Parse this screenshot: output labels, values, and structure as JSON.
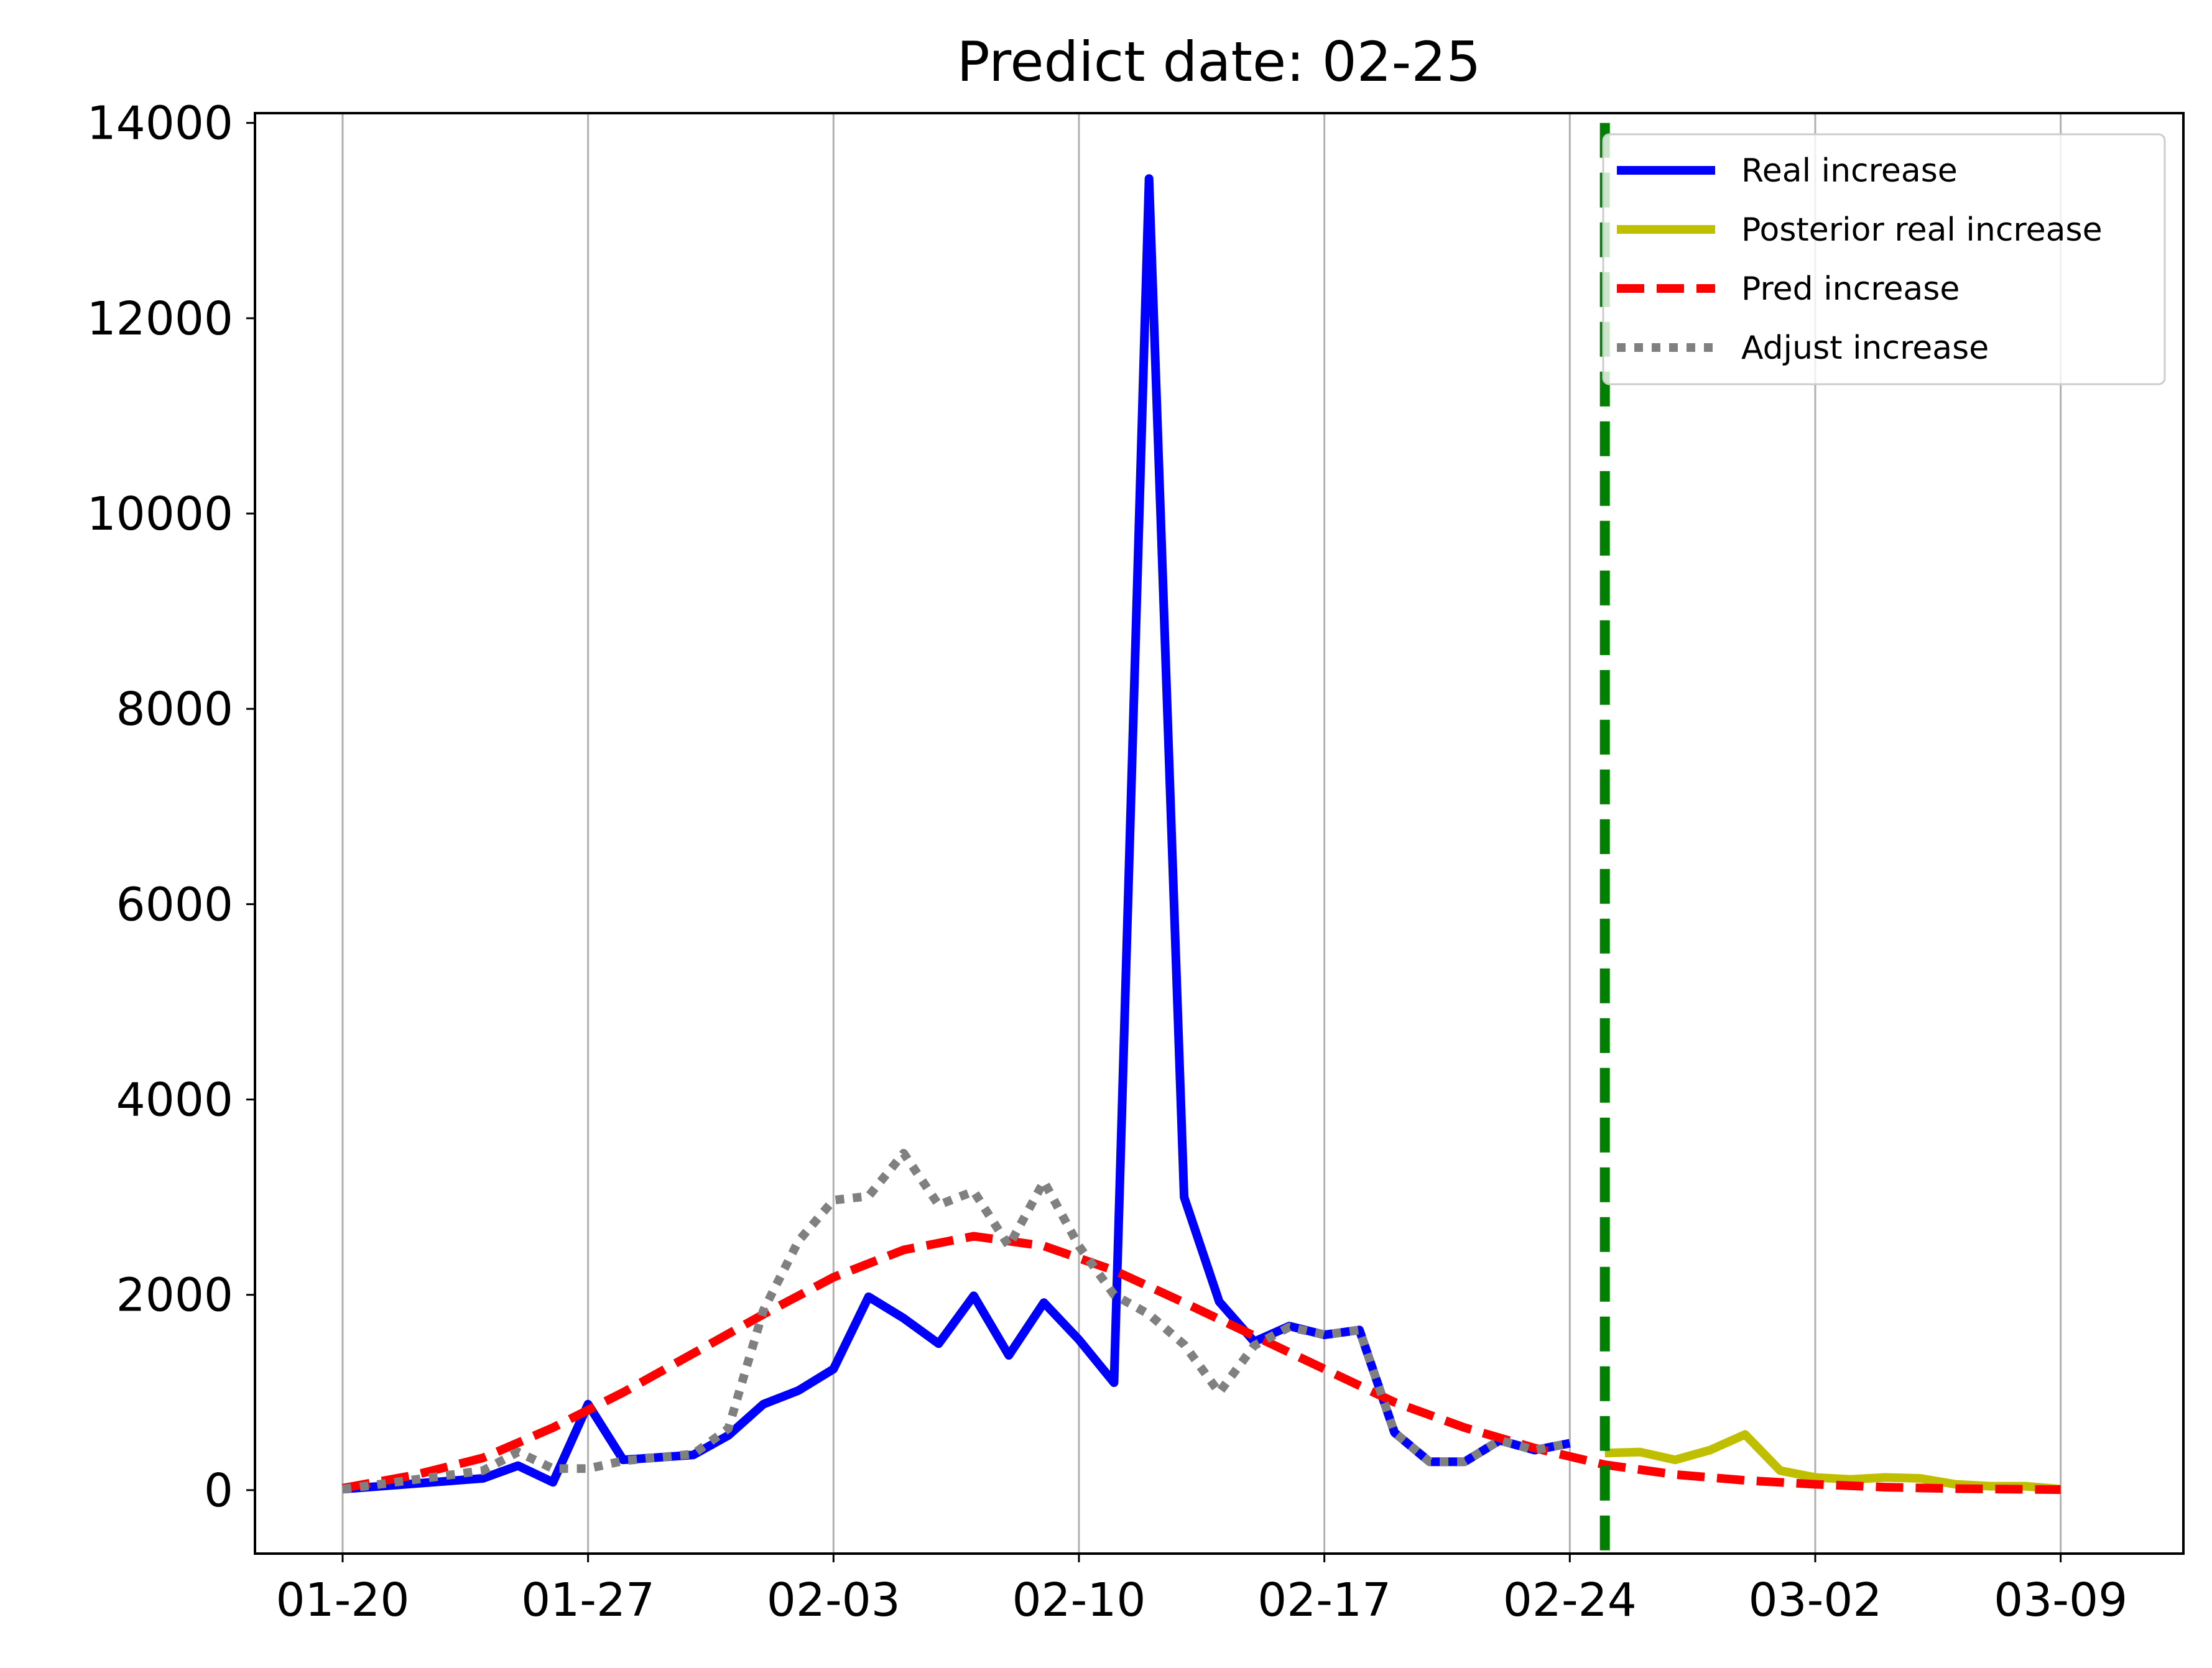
{
  "chart_data": {
    "type": "line",
    "title": "Predict date: 02-25",
    "xlabel": "",
    "ylabel": "",
    "x_ticks": [
      "01-20",
      "01-27",
      "02-03",
      "02-10",
      "02-17",
      "02-24",
      "03-02",
      "03-09"
    ],
    "y_ticks": [
      "0",
      "2000",
      "4000",
      "6000",
      "8000",
      "10000",
      "12000",
      "14000"
    ],
    "ylim": [
      -650,
      14100
    ],
    "xlim_days": [
      -2.5,
      52.5
    ],
    "x_start_date": "01-20",
    "grid": "vertical",
    "legend_position": "top-right",
    "predict_date": "02-25",
    "series": [
      {
        "name": "Real increase",
        "color": "#0000ff",
        "style": "solid",
        "points": [
          [
            0,
            10
          ],
          [
            4,
            120
          ],
          [
            5,
            250
          ],
          [
            6,
            80
          ],
          [
            7,
            880
          ],
          [
            8,
            310
          ],
          [
            10,
            360
          ],
          [
            11,
            560
          ],
          [
            12,
            880
          ],
          [
            13,
            1020
          ],
          [
            14,
            1240
          ],
          [
            15,
            1980
          ],
          [
            16,
            1760
          ],
          [
            17,
            1500
          ],
          [
            18,
            1990
          ],
          [
            19,
            1380
          ],
          [
            20,
            1920
          ],
          [
            21,
            1540
          ],
          [
            22,
            1100
          ],
          [
            23,
            13430
          ],
          [
            24,
            3000
          ],
          [
            25,
            1930
          ],
          [
            26,
            1520
          ],
          [
            27,
            1680
          ],
          [
            28,
            1590
          ],
          [
            29,
            1640
          ],
          [
            30,
            590
          ],
          [
            31,
            290
          ],
          [
            32,
            290
          ],
          [
            33,
            510
          ],
          [
            34,
            410
          ],
          [
            35,
            480
          ]
        ]
      },
      {
        "name": "Posterior real increase",
        "color": "#bfbf00",
        "style": "solid",
        "points": [
          [
            36,
            380
          ],
          [
            37,
            390
          ],
          [
            38,
            310
          ],
          [
            39,
            410
          ],
          [
            40,
            570
          ],
          [
            41,
            200
          ],
          [
            42,
            130
          ],
          [
            43,
            110
          ],
          [
            44,
            130
          ],
          [
            45,
            120
          ],
          [
            46,
            60
          ],
          [
            47,
            40
          ],
          [
            48,
            40
          ],
          [
            49,
            10
          ]
        ]
      },
      {
        "name": "Pred increase",
        "color": "#ff0000",
        "style": "dashed",
        "points": [
          [
            0,
            20
          ],
          [
            2,
            150
          ],
          [
            4,
            330
          ],
          [
            6,
            640
          ],
          [
            8,
            1000
          ],
          [
            10,
            1400
          ],
          [
            12,
            1800
          ],
          [
            14,
            2180
          ],
          [
            16,
            2460
          ],
          [
            18,
            2600
          ],
          [
            20,
            2500
          ],
          [
            22,
            2250
          ],
          [
            24,
            1920
          ],
          [
            26,
            1580
          ],
          [
            28,
            1240
          ],
          [
            30,
            900
          ],
          [
            32,
            640
          ],
          [
            34,
            430
          ],
          [
            36,
            260
          ],
          [
            38,
            160
          ],
          [
            40,
            100
          ],
          [
            42,
            60
          ],
          [
            44,
            30
          ],
          [
            46,
            15
          ],
          [
            48,
            8
          ],
          [
            49,
            5
          ]
        ]
      },
      {
        "name": "Adjust increase",
        "color": "#808080",
        "style": "dotted",
        "points": [
          [
            0,
            10
          ],
          [
            4,
            200
          ],
          [
            5,
            390
          ],
          [
            6,
            220
          ],
          [
            7,
            220
          ],
          [
            8,
            300
          ],
          [
            10,
            370
          ],
          [
            11,
            630
          ],
          [
            12,
            1840
          ],
          [
            13,
            2550
          ],
          [
            14,
            2970
          ],
          [
            15,
            3010
          ],
          [
            16,
            3450
          ],
          [
            17,
            2920
          ],
          [
            18,
            3060
          ],
          [
            19,
            2500
          ],
          [
            20,
            3160
          ],
          [
            21,
            2500
          ],
          [
            22,
            2000
          ],
          [
            23,
            1800
          ],
          [
            24,
            1490
          ],
          [
            25,
            1000
          ],
          [
            26,
            1480
          ],
          [
            27,
            1670
          ],
          [
            28,
            1590
          ],
          [
            29,
            1640
          ],
          [
            30,
            590
          ],
          [
            31,
            290
          ],
          [
            32,
            290
          ],
          [
            33,
            510
          ],
          [
            34,
            410
          ],
          [
            35,
            480
          ]
        ]
      }
    ],
    "vline": {
      "x_day": 36,
      "color": "#008000",
      "style": "dashed"
    }
  }
}
